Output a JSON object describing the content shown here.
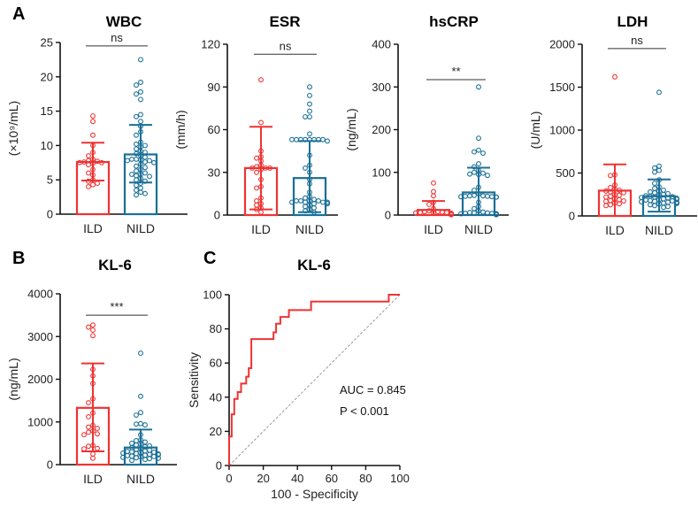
{
  "colors": {
    "ILD": "#ee3333",
    "NILD": "#1a6f96",
    "axis": "#111111",
    "diagonal": "#999999"
  },
  "panel_letters": [
    "A",
    "B",
    "C"
  ],
  "chart_data": [
    {
      "type": "bar",
      "title": "WBC",
      "ylabel": "(×10⁹/mL)",
      "ylim": [
        0,
        25
      ],
      "yticks": [
        0,
        5,
        10,
        15,
        20,
        25
      ],
      "categories": [
        "ILD",
        "NILD"
      ],
      "significance": "ns",
      "bracket_y": 24.5,
      "series": [
        {
          "name": "ILD",
          "mean": 7.6,
          "sd_upper": 10.4,
          "sd_lower": 4.9,
          "points": [
            14.3,
            13.5,
            11.5,
            10.0,
            9.0,
            8.5,
            8.0,
            7.8,
            7.7,
            7.6,
            7.5,
            7.5,
            7.4,
            7.2,
            6.5,
            6.0,
            5.7,
            5.0,
            4.8,
            4.5,
            4.3,
            4.0
          ]
        },
        {
          "name": "NILD",
          "mean": 8.7,
          "sd_upper": 13.0,
          "sd_lower": 4.6,
          "points": [
            22.5,
            19.2,
            18.8,
            17.8,
            17.5,
            16.7,
            14.5,
            14.2,
            13.5,
            12.8,
            12.0,
            11.5,
            10.5,
            10.2,
            10.0,
            9.8,
            9.5,
            9.2,
            9.0,
            8.8,
            8.5,
            8.3,
            8.0,
            8.0,
            7.9,
            7.8,
            7.8,
            7.6,
            7.5,
            7.3,
            7.0,
            6.8,
            6.5,
            6.3,
            6.0,
            5.8,
            5.8,
            5.6,
            5.5,
            5.2,
            5.0,
            4.8,
            4.5,
            4.2,
            3.8,
            3.5,
            3.2,
            3.0,
            2.8
          ]
        }
      ]
    },
    {
      "type": "bar",
      "title": "ESR",
      "ylabel": "(mm/h)",
      "ylim": [
        0,
        120
      ],
      "yticks": [
        0,
        30,
        60,
        90,
        120
      ],
      "categories": [
        "ILD",
        "NILD"
      ],
      "significance": "ns",
      "bracket_y": 113,
      "series": [
        {
          "name": "ILD",
          "mean": 33,
          "sd_upper": 62,
          "sd_lower": 4,
          "points": [
            95,
            65,
            45,
            41,
            40,
            38,
            35,
            34,
            33,
            33,
            33,
            32,
            30,
            25,
            20,
            19,
            12,
            10,
            8,
            7,
            5,
            4,
            2
          ]
        },
        {
          "name": "NILD",
          "mean": 26,
          "sd_upper": 52,
          "sd_lower": 2,
          "points": [
            90,
            84,
            78,
            73,
            69,
            69,
            57,
            53,
            53,
            53,
            53,
            53,
            53,
            53,
            53,
            52,
            42,
            35,
            33,
            30,
            25,
            22,
            16,
            13,
            12,
            11,
            10,
            10,
            10,
            10,
            9,
            9,
            9,
            9,
            9,
            8,
            8,
            8,
            7,
            6,
            5,
            4,
            3,
            2
          ]
        }
      ]
    },
    {
      "type": "bar",
      "title": "hsCRP",
      "ylabel": "(ng/mL)",
      "ylim": [
        0,
        400
      ],
      "yticks": [
        0,
        100,
        200,
        300,
        400
      ],
      "categories": [
        "ILD",
        "NILD"
      ],
      "significance": "**",
      "bracket_y": 317,
      "series": [
        {
          "name": "ILD",
          "mean": 12,
          "sd_upper": 33,
          "sd_lower": 0,
          "points": [
            75,
            55,
            45,
            30,
            25,
            15,
            10,
            8,
            8,
            7,
            6,
            6,
            5,
            5,
            4,
            4,
            3,
            3,
            2,
            2,
            1,
            1,
            1
          ]
        },
        {
          "name": "NILD",
          "mean": 53,
          "sd_upper": 111,
          "sd_lower": 0,
          "points": [
            300,
            180,
            152,
            148,
            145,
            120,
            113,
            105,
            100,
            98,
            96,
            95,
            93,
            65,
            58,
            50,
            46,
            45,
            45,
            44,
            44,
            43,
            43,
            42,
            42,
            30,
            20,
            15,
            10,
            7,
            6,
            5,
            5,
            4,
            4,
            3,
            3,
            3,
            2,
            2,
            2,
            1,
            1,
            1,
            1
          ]
        }
      ]
    },
    {
      "type": "bar",
      "title": "LDH",
      "ylabel": "(U/mL)",
      "ylim": [
        0,
        2000
      ],
      "yticks": [
        0,
        500,
        1000,
        1500,
        2000
      ],
      "categories": [
        "ILD",
        "NILD"
      ],
      "significance": "ns",
      "bracket_y": 1950,
      "series": [
        {
          "name": "ILD",
          "mean": 295,
          "sd_upper": 600,
          "sd_lower": 0,
          "points": [
            1620,
            480,
            470,
            360,
            330,
            310,
            300,
            290,
            280,
            270,
            250,
            240,
            230,
            220,
            200,
            190,
            180,
            175,
            170,
            150,
            140,
            130,
            120
          ]
        },
        {
          "name": "NILD",
          "mean": 230,
          "sd_upper": 425,
          "sd_lower": 50,
          "points": [
            1440,
            580,
            560,
            530,
            510,
            420,
            380,
            340,
            320,
            300,
            290,
            280,
            270,
            260,
            250,
            240,
            235,
            230,
            225,
            220,
            215,
            210,
            205,
            200,
            200,
            195,
            190,
            185,
            180,
            175,
            170,
            165,
            160,
            160,
            155,
            150,
            150,
            145,
            140,
            130,
            120,
            110,
            100
          ]
        }
      ]
    },
    {
      "type": "bar",
      "title": "KL-6",
      "ylabel": "(ng/mL)",
      "ylim": [
        0,
        4000
      ],
      "yticks": [
        0,
        1000,
        2000,
        3000,
        4000
      ],
      "categories": [
        "ILD",
        "NILD"
      ],
      "significance": "***",
      "bracket_y": 3500,
      "series": [
        {
          "name": "ILD",
          "mean": 1330,
          "sd_upper": 2370,
          "sd_lower": 310,
          "points": [
            3270,
            3220,
            3150,
            3020,
            2230,
            2080,
            1900,
            1540,
            1450,
            1210,
            1120,
            920,
            880,
            850,
            790,
            760,
            720,
            700,
            450,
            430,
            380,
            370,
            250,
            150
          ]
        },
        {
          "name": "NILD",
          "mean": 400,
          "sd_upper": 820,
          "sd_lower": 0,
          "points": [
            2610,
            1600,
            1220,
            1160,
            960,
            950,
            930,
            700,
            580,
            560,
            530,
            500,
            480,
            460,
            440,
            420,
            400,
            380,
            360,
            340,
            320,
            310,
            300,
            290,
            280,
            270,
            260,
            250,
            240,
            230,
            220,
            210,
            200,
            190,
            180,
            170,
            160,
            150,
            140,
            120,
            100
          ]
        }
      ]
    },
    {
      "type": "line",
      "title": "KL-6",
      "xlabel": "100 - Specificity",
      "ylabel": "Sensitivity",
      "xlim": [
        0,
        100
      ],
      "ylim": [
        0,
        100
      ],
      "xticks": [
        0,
        20,
        40,
        60,
        80,
        100
      ],
      "yticks": [
        0,
        20,
        40,
        60,
        80,
        100
      ],
      "annotations": [
        "AUC = 0.845",
        "P < 0.001"
      ],
      "roc": {
        "x": [
          0,
          0,
          1.5,
          1.5,
          3,
          3,
          5,
          5,
          7,
          7,
          10,
          10,
          11.5,
          11.5,
          13,
          13,
          26,
          26,
          27.5,
          27.5,
          30,
          30,
          35,
          35,
          48,
          48,
          93.5,
          93.5,
          100
        ],
        "y": [
          0,
          17,
          17,
          30,
          30,
          39,
          39,
          43,
          43,
          48,
          48,
          52,
          52,
          57,
          57,
          74,
          74,
          78,
          78,
          83,
          83,
          87,
          87,
          91,
          91,
          96,
          96,
          100,
          100
        ]
      },
      "reference_line": {
        "x": [
          0,
          100
        ],
        "y": [
          0,
          100
        ]
      }
    }
  ]
}
